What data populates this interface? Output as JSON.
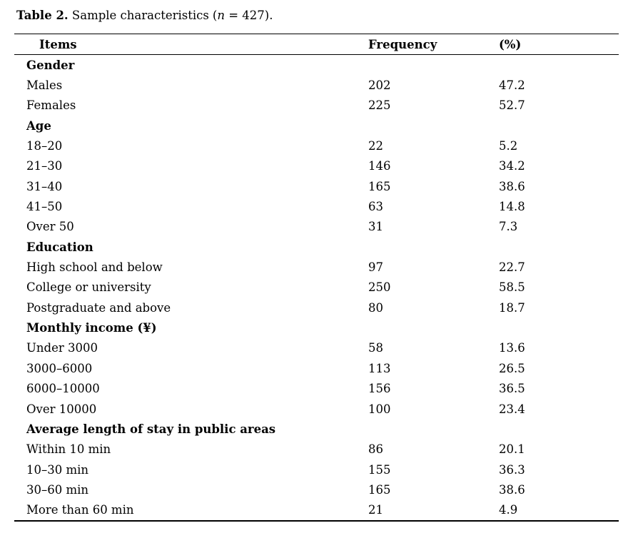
{
  "caption": {
    "label_bold": "Table 2.",
    "text": "Sample characteristics",
    "paren_open": "(",
    "n_italic": "n",
    "paren_rest": " = 427)."
  },
  "table": {
    "columns": [
      "Items",
      "Frequency",
      "(%)"
    ],
    "rows": [
      {
        "item": "Gender",
        "frequency": "",
        "pct": "",
        "section": true
      },
      {
        "item": "Males",
        "frequency": "202",
        "pct": "47.2",
        "section": false
      },
      {
        "item": "Females",
        "frequency": "225",
        "pct": "52.7",
        "section": false
      },
      {
        "item": "Age",
        "frequency": "",
        "pct": "",
        "section": true
      },
      {
        "item": "18–20",
        "frequency": "22",
        "pct": "5.2",
        "section": false
      },
      {
        "item": "21–30",
        "frequency": "146",
        "pct": "34.2",
        "section": false
      },
      {
        "item": "31–40",
        "frequency": "165",
        "pct": "38.6",
        "section": false
      },
      {
        "item": "41–50",
        "frequency": "63",
        "pct": "14.8",
        "section": false
      },
      {
        "item": "Over 50",
        "frequency": "31",
        "pct": "7.3",
        "section": false
      },
      {
        "item": "Education",
        "frequency": "",
        "pct": "",
        "section": true
      },
      {
        "item": "High school and below",
        "frequency": "97",
        "pct": "22.7",
        "section": false
      },
      {
        "item": "College or university",
        "frequency": "250",
        "pct": "58.5",
        "section": false
      },
      {
        "item": "Postgraduate and above",
        "frequency": "80",
        "pct": "18.7",
        "section": false
      },
      {
        "item": "Monthly income (¥)",
        "frequency": "",
        "pct": "",
        "section": true
      },
      {
        "item": "Under 3000",
        "frequency": "58",
        "pct": "13.6",
        "section": false
      },
      {
        "item": "3000–6000",
        "frequency": "113",
        "pct": "26.5",
        "section": false
      },
      {
        "item": "6000–10000",
        "frequency": "156",
        "pct": "36.5",
        "section": false
      },
      {
        "item": "Over 10000",
        "frequency": "100",
        "pct": "23.4",
        "section": false
      },
      {
        "item": "Average length of stay in public areas",
        "frequency": "",
        "pct": "",
        "section": true
      },
      {
        "item": "Within 10 min",
        "frequency": "86",
        "pct": "20.1",
        "section": false
      },
      {
        "item": "10–30 min",
        "frequency": "155",
        "pct": "36.3",
        "section": false
      },
      {
        "item": "30–60 min",
        "frequency": "165",
        "pct": "38.6",
        "section": false
      },
      {
        "item": "More than 60 min",
        "frequency": "21",
        "pct": "4.9",
        "section": false
      }
    ]
  }
}
